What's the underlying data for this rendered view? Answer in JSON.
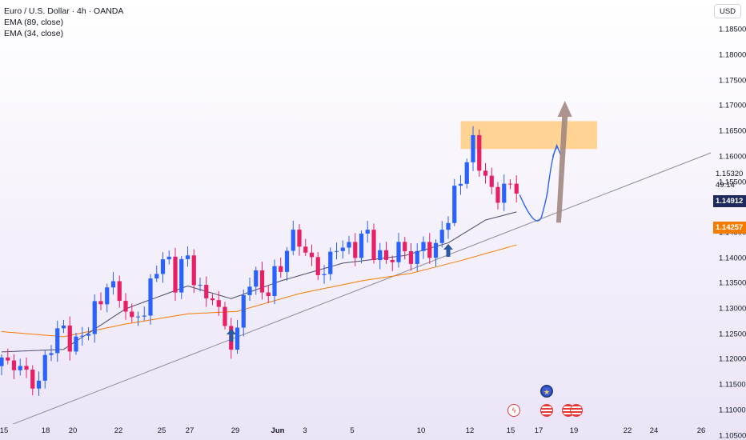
{
  "legend": {
    "symbol_line": "Euro / U.S. Dollar · 4h · OANDA",
    "ema_slow": "EMA (89, close)",
    "ema_fast": "EMA (34, close)"
  },
  "price_axis": {
    "currency": "USD",
    "ticks": [
      "1.18500",
      "1.18000",
      "1.17500",
      "1.17000",
      "1.16500",
      "1.16000",
      "1.15500",
      "1.14500",
      "1.14000",
      "1.13500",
      "1.13000",
      "1.12500",
      "1.12000",
      "1.11500",
      "1.11000",
      "1.10500"
    ],
    "current_price": "1.15320",
    "countdown": "49:14",
    "ema_fast_value": "1.14912",
    "ema_slow_value": "1.14257"
  },
  "time_axis": [
    "15",
    "18",
    "20",
    "22",
    "25",
    "27",
    "29",
    "Jun",
    "3",
    "5",
    "10",
    "12",
    "15",
    "17",
    "19",
    "22",
    "24",
    "26"
  ],
  "chart_data": {
    "type": "candlestick",
    "symbol": "Euro / U.S. Dollar",
    "interval": "4h",
    "source": "OANDA",
    "price_range": [
      1.1,
      1.19
    ],
    "close_path": [
      [
        0,
        1.1195
      ],
      [
        2,
        1.119
      ],
      [
        4,
        1.1175
      ],
      [
        5,
        1.115
      ],
      [
        6,
        1.116
      ],
      [
        7,
        1.1195
      ],
      [
        8,
        1.123
      ],
      [
        9,
        1.1255
      ],
      [
        10,
        1.1255
      ],
      [
        11,
        1.124
      ],
      [
        12,
        1.1225
      ],
      [
        13,
        1.125
      ],
      [
        14,
        1.1265
      ],
      [
        15,
        1.1295
      ],
      [
        16,
        1.132
      ],
      [
        17,
        1.1345
      ],
      [
        18,
        1.1345
      ],
      [
        19,
        1.132
      ],
      [
        20,
        1.13
      ],
      [
        21,
        1.1275
      ],
      [
        22,
        1.1285
      ],
      [
        23,
        1.13
      ],
      [
        24,
        1.134
      ],
      [
        25,
        1.138
      ],
      [
        26,
        1.1405
      ],
      [
        27,
        1.138
      ],
      [
        28,
        1.1355
      ],
      [
        29,
        1.139
      ],
      [
        30,
        1.1395
      ],
      [
        31,
        1.1365
      ],
      [
        32,
        1.1335
      ],
      [
        33,
        1.132
      ],
      [
        34,
        1.1325
      ],
      [
        35,
        1.13
      ],
      [
        36,
        1.126
      ],
      [
        37,
        1.123
      ],
      [
        38,
        1.126
      ],
      [
        39,
        1.1315
      ],
      [
        40,
        1.1365
      ],
      [
        41,
        1.136
      ],
      [
        42,
        1.133
      ],
      [
        43,
        1.1345
      ],
      [
        44,
        1.136
      ],
      [
        45,
        1.1385
      ],
      [
        46,
        1.142
      ],
      [
        47,
        1.144
      ],
      [
        48,
        1.1435
      ],
      [
        49,
        1.141
      ],
      [
        50,
        1.1395
      ],
      [
        51,
        1.137
      ],
      [
        52,
        1.1375
      ],
      [
        53,
        1.14
      ],
      [
        54,
        1.142
      ],
      [
        55,
        1.143
      ],
      [
        56,
        1.141
      ],
      [
        57,
        1.142
      ],
      [
        58,
        1.1445
      ],
      [
        59,
        1.144
      ],
      [
        60,
        1.142
      ],
      [
        61,
        1.14
      ],
      [
        62,
        1.1395
      ],
      [
        63,
        1.1405
      ],
      [
        64,
        1.142
      ],
      [
        65,
        1.1415
      ],
      [
        66,
        1.1395
      ],
      [
        67,
        1.141
      ],
      [
        68,
        1.1425
      ],
      [
        69,
        1.1415
      ],
      [
        70,
        1.142
      ],
      [
        71,
        1.145
      ],
      [
        72,
        1.149
      ],
      [
        73,
        1.152
      ],
      [
        74,
        1.1555
      ],
      [
        75,
        1.16
      ],
      [
        76,
        1.162
      ],
      [
        77,
        1.159
      ],
      [
        78,
        1.156
      ],
      [
        79,
        1.153
      ],
      [
        80,
        1.152
      ],
      [
        81,
        1.1545
      ],
      [
        82,
        1.154
      ],
      [
        83,
        1.1532
      ]
    ],
    "ema_34": [
      [
        0,
        1.1215
      ],
      [
        10,
        1.122
      ],
      [
        20,
        1.13
      ],
      [
        30,
        1.1345
      ],
      [
        37,
        1.132
      ],
      [
        45,
        1.1355
      ],
      [
        55,
        1.139
      ],
      [
        65,
        1.1405
      ],
      [
        72,
        1.143
      ],
      [
        78,
        1.1475
      ],
      [
        83,
        1.1491
      ]
    ],
    "ema_89": [
      [
        0,
        1.1255
      ],
      [
        10,
        1.1245
      ],
      [
        20,
        1.127
      ],
      [
        30,
        1.129
      ],
      [
        38,
        1.1295
      ],
      [
        48,
        1.133
      ],
      [
        58,
        1.1355
      ],
      [
        66,
        1.137
      ],
      [
        74,
        1.1395
      ],
      [
        83,
        1.1426
      ]
    ],
    "trendline": [
      [
        -4,
        1.1045
      ],
      [
        118,
        1.1625
      ]
    ],
    "resistance_zone": [
      1.1615,
      1.167
    ],
    "colors": {
      "up": "#2962ff",
      "down": "#e91e63",
      "ema_34": "#4a4a6a",
      "ema_89": "#f57c00",
      "zone": "#ffcc80",
      "arrow": "#2c5aa0",
      "projection_arrow": "#a1887f"
    }
  },
  "event_icons": [
    "lightning-icon",
    "eu-flag-icon",
    "us-flag-icon",
    "us-flag-icon",
    "us-flag-icon",
    "us-flag-icon"
  ]
}
